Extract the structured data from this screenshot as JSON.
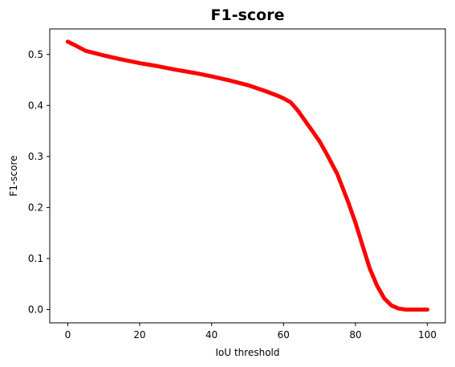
{
  "chart_data": {
    "type": "line",
    "title": "F1-score",
    "xlabel": "IoU threshold",
    "ylabel": "F1-score",
    "xlim": [
      -5,
      105
    ],
    "ylim": [
      -0.026,
      0.55
    ],
    "xticks": [
      0,
      20,
      40,
      60,
      80,
      100
    ],
    "xtick_labels": [
      "0",
      "20",
      "40",
      "60",
      "80",
      "100"
    ],
    "yticks": [
      0.0,
      0.1,
      0.2,
      0.3,
      0.4,
      0.5
    ],
    "ytick_labels": [
      "0.0",
      "0.1",
      "0.2",
      "0.3",
      "0.4",
      "0.5"
    ],
    "grid": false,
    "series": [
      {
        "color": "#ff0000",
        "x": [
          0,
          2,
          5,
          10,
          15,
          20,
          25,
          30,
          35,
          40,
          45,
          50,
          55,
          58,
          60,
          62,
          64,
          66,
          68,
          70,
          72,
          75,
          78,
          80,
          82,
          84,
          86,
          88,
          90,
          92,
          94,
          96,
          98,
          100
        ],
        "y": [
          0.525,
          0.518,
          0.507,
          0.498,
          0.49,
          0.483,
          0.477,
          0.47,
          0.464,
          0.457,
          0.449,
          0.44,
          0.428,
          0.42,
          0.414,
          0.406,
          0.39,
          0.37,
          0.35,
          0.33,
          0.305,
          0.265,
          0.21,
          0.17,
          0.125,
          0.08,
          0.047,
          0.022,
          0.008,
          0.002,
          0.0,
          0.0,
          0.0,
          0.0
        ]
      }
    ]
  }
}
